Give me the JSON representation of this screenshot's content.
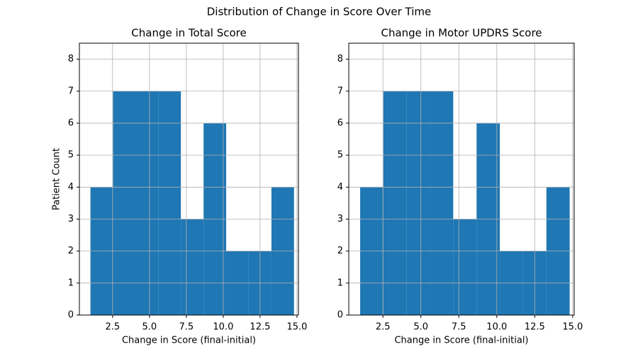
{
  "title": "Distribution of Change in Score Over Time",
  "chart_data": [
    {
      "type": "histogram",
      "title": "Change in Total Score",
      "x_label": "Change in Score (final-initial)",
      "y_label": "Patient Count",
      "bins": [
        1.0,
        2.53,
        4.07,
        5.6,
        7.13,
        8.67,
        10.2,
        11.73,
        13.27,
        14.8
      ],
      "values": [
        4,
        7,
        7,
        7,
        3,
        6,
        2,
        2,
        4
      ],
      "color": "#1f77b4",
      "xlim": [
        0.25,
        15.1
      ],
      "ylim": [
        0,
        8.5
      ],
      "xticks": [
        2.5,
        {
          "value": 5,
          "label": "5.0"
        },
        7.5,
        {
          "value": 10,
          "label": "10.0"
        },
        12.5,
        {
          "value": 15,
          "label": "15.0"
        }
      ],
      "yticks": [
        0,
        1,
        2,
        3,
        4,
        5,
        6,
        7,
        8
      ],
      "grid": true
    },
    {
      "type": "histogram",
      "title": "Change in Motor UPDRS Score",
      "x_label": "Change in Score (final-initial)",
      "bins": [
        1.0,
        2.53,
        4.07,
        5.6,
        7.13,
        8.67,
        10.2,
        11.73,
        13.27,
        14.8
      ],
      "values": [
        4,
        7,
        7,
        7,
        3,
        6,
        2,
        2,
        4
      ],
      "color": "#1f77b4",
      "xlim": [
        0.25,
        15.1
      ],
      "ylim": [
        0,
        8.5
      ],
      "xticks": [
        2.5,
        {
          "value": 5,
          "label": "5.0"
        },
        7.5,
        {
          "value": 10,
          "label": "10.0"
        },
        12.5,
        {
          "value": 15,
          "label": "15.0"
        }
      ],
      "yticks": [
        0,
        1,
        2,
        3,
        4,
        5,
        6,
        7,
        8
      ],
      "grid": true
    }
  ]
}
